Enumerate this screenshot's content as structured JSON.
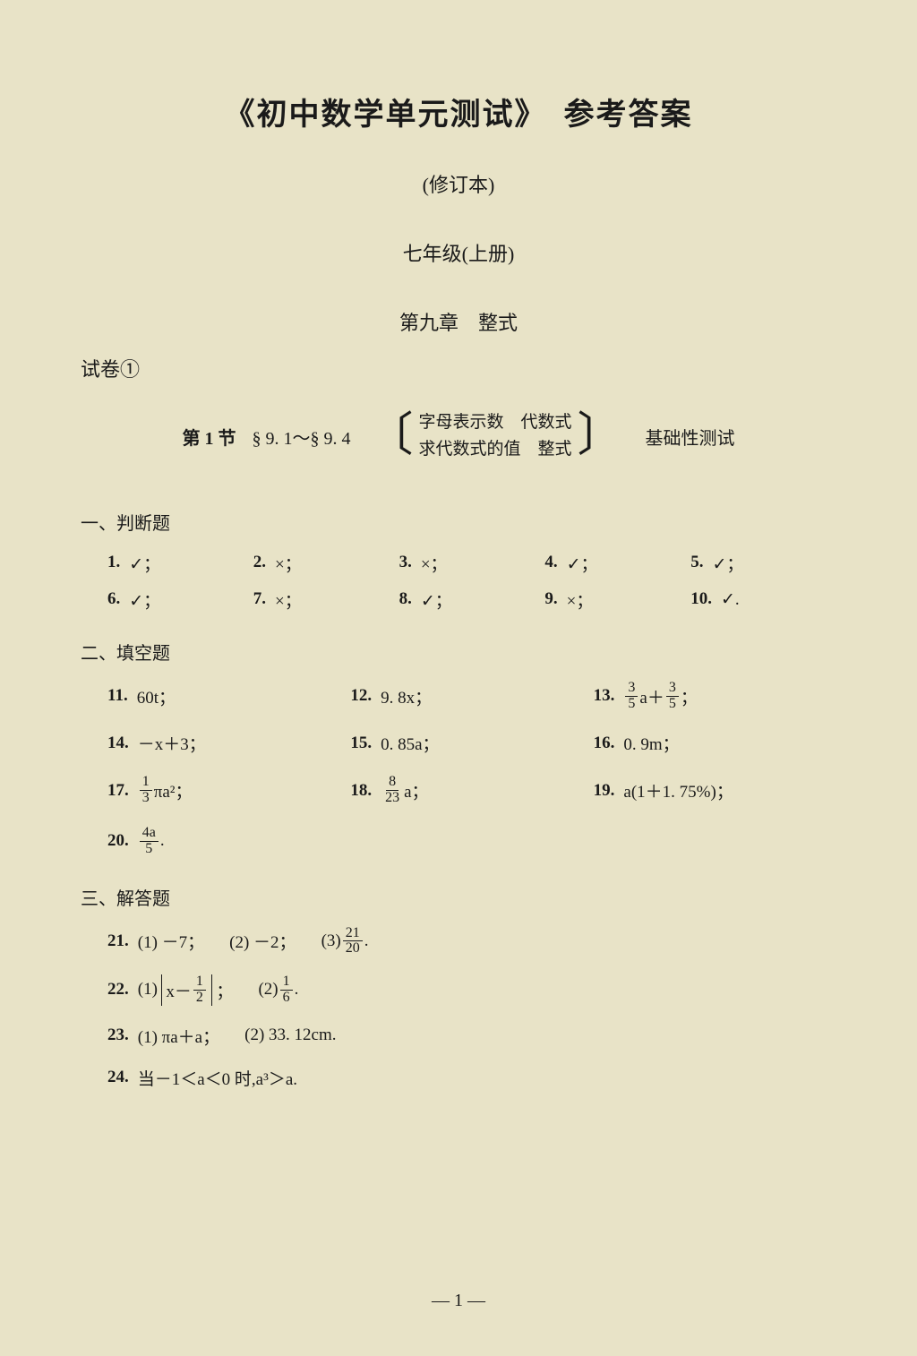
{
  "title": "《初中数学单元测试》　参考答案",
  "subtitle": "(修订本)",
  "grade": "七年级(上册)",
  "chapter": "第九章　整式",
  "exam_label": "试卷①",
  "section": {
    "label": "第 1 节",
    "range": "§ 9. 1～§ 9. 4",
    "topics_line1": "字母表示数　代数式",
    "topics_line2": "求代数式的值　整式",
    "test_type": "基础性测试"
  },
  "headings": {
    "s1": "一、判断题",
    "s2": "二、填空题",
    "s3": "三、解答题"
  },
  "judgement": [
    {
      "n": "1.",
      "a": "✓；"
    },
    {
      "n": "2.",
      "a": "×；"
    },
    {
      "n": "3.",
      "a": "×；"
    },
    {
      "n": "4.",
      "a": "✓；"
    },
    {
      "n": "5.",
      "a": "✓；"
    },
    {
      "n": "6.",
      "a": "✓；"
    },
    {
      "n": "7.",
      "a": "×；"
    },
    {
      "n": "8.",
      "a": "✓；"
    },
    {
      "n": "9.",
      "a": "×；"
    },
    {
      "n": "10.",
      "a": "✓."
    }
  ],
  "fill": {
    "q11": {
      "n": "11.",
      "a": "60t；"
    },
    "q12": {
      "n": "12.",
      "a": "9. 8x；"
    },
    "q13": {
      "n": "13.",
      "fa_n": "3",
      "fa_d": "5",
      "mid": "a＋",
      "fb_n": "3",
      "fb_d": "5",
      "tail": "；"
    },
    "q14": {
      "n": "14.",
      "a": "－x＋3；"
    },
    "q15": {
      "n": "15.",
      "a": "0. 85a；"
    },
    "q16": {
      "n": "16.",
      "a": "0. 9m；"
    },
    "q17": {
      "n": "17.",
      "f_n": "1",
      "f_d": "3",
      "tail": "πa²；"
    },
    "q18": {
      "n": "18.",
      "f_n": "8",
      "f_d": "23",
      "tail": "a；"
    },
    "q19": {
      "n": "19.",
      "a": "a(1＋1. 75%)；"
    },
    "q20": {
      "n": "20.",
      "f_n": "4a",
      "f_d": "5",
      "tail": "."
    }
  },
  "solve": {
    "q21": {
      "n": "21.",
      "p1": "(1) －7；",
      "p2": "(2) －2；",
      "p3_lead": "(3) ",
      "p3_fn": "21",
      "p3_fd": "20",
      "p3_tail": "."
    },
    "q22": {
      "n": "22.",
      "p1_lead": "(1) ",
      "p1_inner_pre": "x－",
      "p1_fn": "1",
      "p1_fd": "2",
      "p1_tail": "；",
      "p2_lead": "(2) ",
      "p2_fn": "1",
      "p2_fd": "6",
      "p2_tail": "."
    },
    "q23": {
      "n": "23.",
      "p1": "(1) πa＋a；",
      "p2": "(2) 33. 12cm."
    },
    "q24": {
      "n": "24.",
      "a": "当－1＜a＜0 时,a³＞a."
    }
  },
  "page_num": "— 1 —"
}
